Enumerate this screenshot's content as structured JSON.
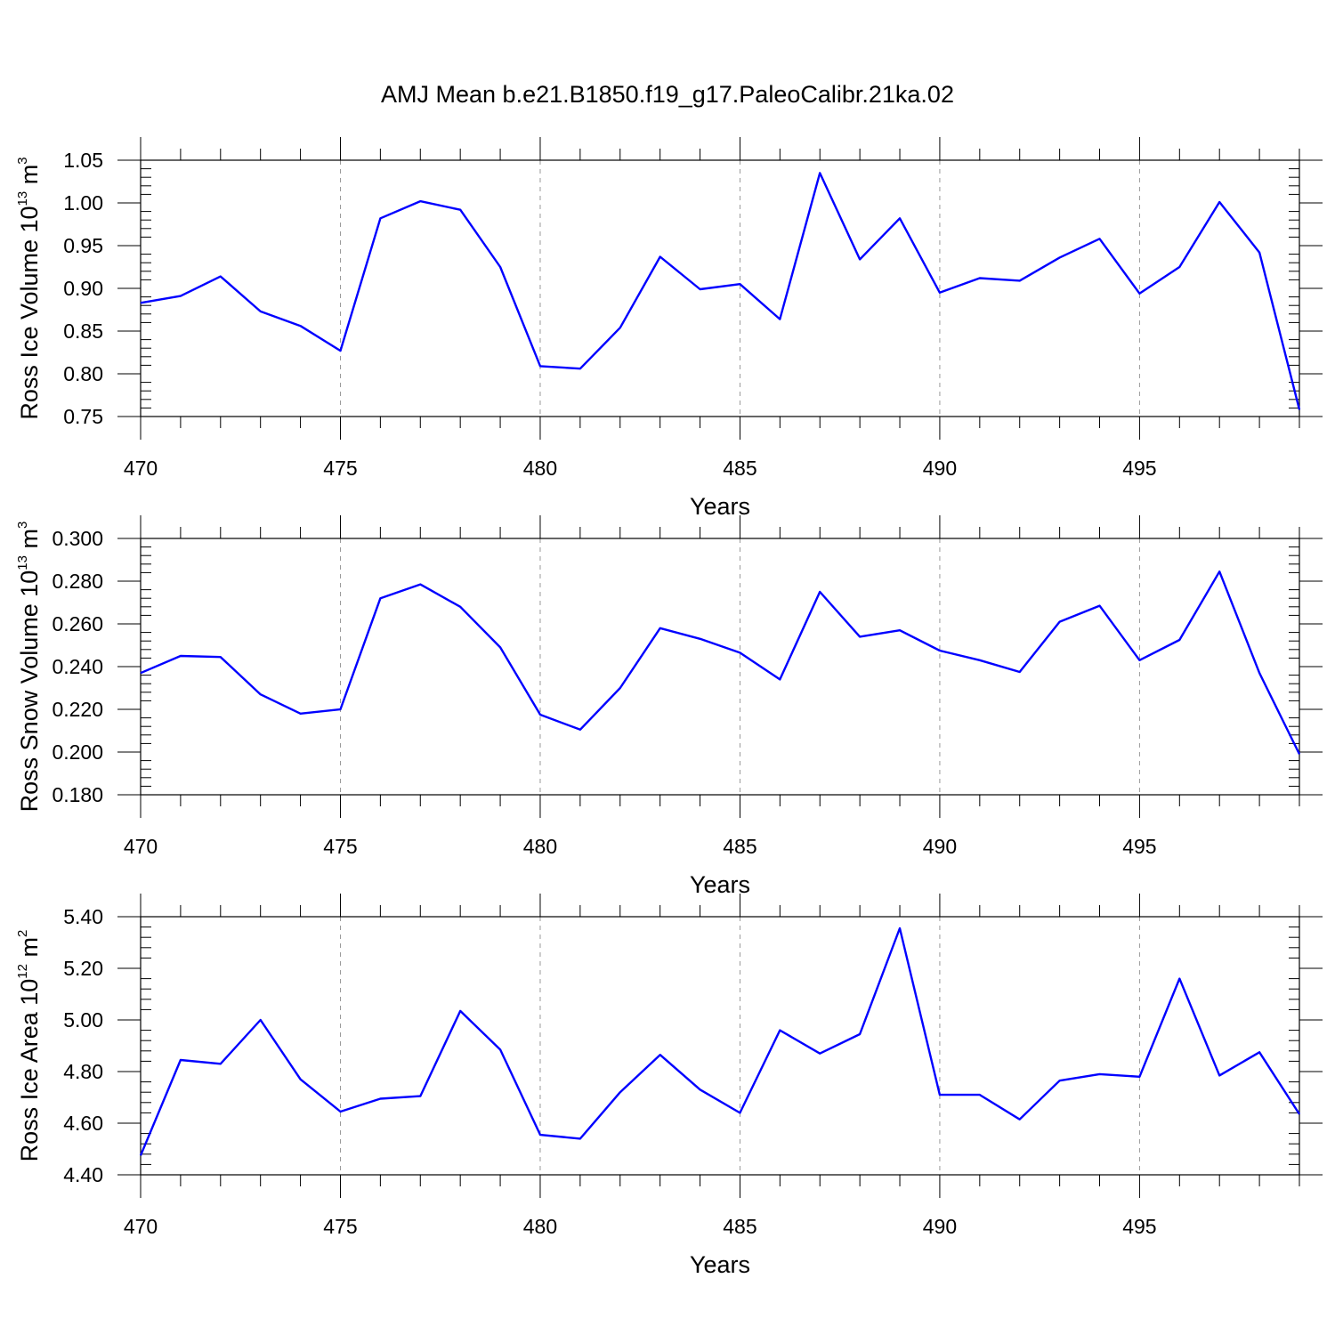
{
  "title": "AMJ Mean b.e21.B1850.f19_g17.PaleoCalibr.21ka.02",
  "colors": {
    "line": "#0000ff",
    "axis": "#000000",
    "grid": "#999999"
  },
  "chart_data": [
    {
      "type": "line",
      "xlabel": "Years",
      "ylabel": {
        "text": "Ross Ice Volume 10",
        "exponent": "13",
        "unit": " m",
        "unit_exponent": "3"
      },
      "xlim": [
        470,
        499
      ],
      "ylim": [
        0.75,
        1.05
      ],
      "xticks": [
        470,
        475,
        480,
        485,
        490,
        495
      ],
      "xtick_labels": [
        "470",
        "475",
        "480",
        "485",
        "490",
        "495"
      ],
      "yticks": [
        0.75,
        0.8,
        0.85,
        0.9,
        0.95,
        1.0,
        1.05
      ],
      "ytick_labels": [
        "0.75",
        "0.80",
        "0.85",
        "0.90",
        "0.95",
        "1.00",
        "1.05"
      ],
      "grid_x": true,
      "x": [
        470,
        471,
        472,
        473,
        474,
        475,
        476,
        477,
        478,
        479,
        480,
        481,
        482,
        483,
        484,
        485,
        486,
        487,
        488,
        489,
        490,
        491,
        492,
        493,
        494,
        495,
        496,
        497,
        498,
        499
      ],
      "y": [
        0.883,
        0.891,
        0.914,
        0.873,
        0.856,
        0.827,
        0.982,
        1.002,
        0.992,
        0.925,
        0.809,
        0.806,
        0.854,
        0.937,
        0.899,
        0.905,
        0.864,
        1.035,
        0.934,
        0.982,
        0.895,
        0.912,
        0.909,
        0.936,
        0.958,
        0.894,
        0.925,
        1.001,
        0.942,
        0.758
      ]
    },
    {
      "type": "line",
      "xlabel": "Years",
      "ylabel": {
        "text": "Ross Snow Volume 10",
        "exponent": "13",
        "unit": " m",
        "unit_exponent": "3"
      },
      "xlim": [
        470,
        499
      ],
      "ylim": [
        0.18,
        0.3
      ],
      "xticks": [
        470,
        475,
        480,
        485,
        490,
        495
      ],
      "xtick_labels": [
        "470",
        "475",
        "480",
        "485",
        "490",
        "495"
      ],
      "yticks": [
        0.18,
        0.2,
        0.22,
        0.24,
        0.26,
        0.28,
        0.3
      ],
      "ytick_labels": [
        "0.180",
        "0.200",
        "0.220",
        "0.240",
        "0.260",
        "0.280",
        "0.300"
      ],
      "grid_x": true,
      "x": [
        470,
        471,
        472,
        473,
        474,
        475,
        476,
        477,
        478,
        479,
        480,
        481,
        482,
        483,
        484,
        485,
        486,
        487,
        488,
        489,
        490,
        491,
        492,
        493,
        494,
        495,
        496,
        497,
        498,
        499
      ],
      "y": [
        0.237,
        0.245,
        0.2445,
        0.227,
        0.218,
        0.22,
        0.272,
        0.2785,
        0.268,
        0.249,
        0.2175,
        0.2105,
        0.23,
        0.258,
        0.253,
        0.2465,
        0.234,
        0.275,
        0.254,
        0.257,
        0.2475,
        0.243,
        0.2375,
        0.261,
        0.2685,
        0.243,
        0.2525,
        0.2845,
        0.237,
        0.199
      ]
    },
    {
      "type": "line",
      "xlabel": "Years",
      "ylabel": {
        "text": "Ross Ice Area 10",
        "exponent": "12",
        "unit": " m",
        "unit_exponent": "2"
      },
      "xlim": [
        470,
        499
      ],
      "ylim": [
        4.4,
        5.4
      ],
      "xticks": [
        470,
        475,
        480,
        485,
        490,
        495
      ],
      "xtick_labels": [
        "470",
        "475",
        "480",
        "485",
        "490",
        "495"
      ],
      "yticks": [
        4.4,
        4.6,
        4.8,
        5.0,
        5.2,
        5.4
      ],
      "ytick_labels": [
        "4.40",
        "4.60",
        "4.80",
        "5.00",
        "5.20",
        "5.40"
      ],
      "grid_x": true,
      "x": [
        470,
        471,
        472,
        473,
        474,
        475,
        476,
        477,
        478,
        479,
        480,
        481,
        482,
        483,
        484,
        485,
        486,
        487,
        488,
        489,
        490,
        491,
        492,
        493,
        494,
        495,
        496,
        497,
        498,
        499
      ],
      "y": [
        4.475,
        4.845,
        4.83,
        5.0,
        4.77,
        4.645,
        4.695,
        4.705,
        5.035,
        4.885,
        4.555,
        4.54,
        4.72,
        4.865,
        4.73,
        4.64,
        4.96,
        4.87,
        4.945,
        5.355,
        4.71,
        4.71,
        4.615,
        4.765,
        4.79,
        4.78,
        5.16,
        4.785,
        4.875,
        4.635
      ]
    }
  ]
}
